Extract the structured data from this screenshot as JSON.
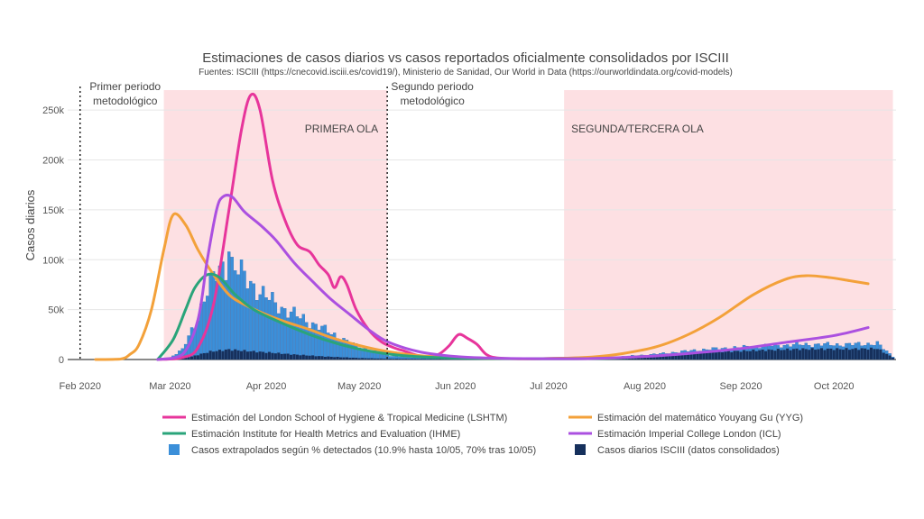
{
  "chart_data": {
    "type": "line",
    "title": "Estimaciones de casos diarios vs casos reportados oficialmente consolidados por ISCIII",
    "subtitle": "Fuentes: ISCIII (https://cnecovid.isciii.es/covid19/), Ministerio de Sanidad, Our World in Data (https://ourworldindata.org/covid-models)",
    "ylabel": "Casos diarios",
    "xlabel": "",
    "x_range": [
      "2020-01-28",
      "2020-10-21"
    ],
    "ylim": [
      0,
      270000
    ],
    "y_ticks": [
      0,
      50000,
      100000,
      150000,
      200000,
      250000
    ],
    "y_tick_labels": [
      "0",
      "50k",
      "100k",
      "150k",
      "200k",
      "250k"
    ],
    "x_ticks": [
      "2020-02-01",
      "2020-03-01",
      "2020-04-01",
      "2020-05-01",
      "2020-06-01",
      "2020-07-01",
      "2020-08-01",
      "2020-09-01",
      "2020-10-01"
    ],
    "x_tick_labels": [
      "Feb 2020",
      "Mar 2020",
      "Apr 2020",
      "May 2020",
      "Jun 2020",
      "Jul 2020",
      "Aug 2020",
      "Sep 2020",
      "Oct 2020"
    ],
    "shaded_regions": [
      {
        "label": "PRIMERA OLA",
        "start": "2020-02-28",
        "end": "2020-05-10",
        "color": "#fde0e3"
      },
      {
        "label": "SEGUNDA/TERCERA OLA",
        "start": "2020-07-06",
        "end": "2020-10-20",
        "color": "#fde0e3"
      }
    ],
    "vertical_lines": [
      {
        "label_line1": "Primer periodo",
        "label_line2": "metodológico",
        "date": "2020-02-01"
      },
      {
        "label_line1": "Segundo periodo",
        "label_line2": "metodológico",
        "date": "2020-05-10"
      }
    ],
    "line_series": [
      {
        "name": "Estimación del London School of Hygiene & Tropical Medicine (LSHTM)",
        "color": "#e7359b",
        "points": [
          [
            "2020-02-26",
            0
          ],
          [
            "2020-03-05",
            2000
          ],
          [
            "2020-03-10",
            12000
          ],
          [
            "2020-03-15",
            55000
          ],
          [
            "2020-03-20",
            150000
          ],
          [
            "2020-03-24",
            230000
          ],
          [
            "2020-03-27",
            265000
          ],
          [
            "2020-03-30",
            250000
          ],
          [
            "2020-04-03",
            180000
          ],
          [
            "2020-04-07",
            140000
          ],
          [
            "2020-04-11",
            115000
          ],
          [
            "2020-04-15",
            108000
          ],
          [
            "2020-04-18",
            95000
          ],
          [
            "2020-04-21",
            85000
          ],
          [
            "2020-04-23",
            72000
          ],
          [
            "2020-04-25",
            83000
          ],
          [
            "2020-04-27",
            75000
          ],
          [
            "2020-04-30",
            50000
          ],
          [
            "2020-05-04",
            30000
          ],
          [
            "2020-05-08",
            18000
          ],
          [
            "2020-05-12",
            12000
          ],
          [
            "2020-05-16",
            8000
          ],
          [
            "2020-05-20",
            4000
          ],
          [
            "2020-05-24",
            3000
          ],
          [
            "2020-05-27",
            6000
          ],
          [
            "2020-05-30",
            14000
          ],
          [
            "2020-06-02",
            25000
          ],
          [
            "2020-06-05",
            21000
          ],
          [
            "2020-06-08",
            15000
          ],
          [
            "2020-06-11",
            5000
          ],
          [
            "2020-06-15",
            1500
          ],
          [
            "2020-06-25",
            800
          ],
          [
            "2020-07-10",
            1500
          ],
          [
            "2020-07-20",
            2500
          ]
        ]
      },
      {
        "name": "Estimación del matemático Youyang Gu (YYG)",
        "color": "#f3a13a",
        "points": [
          [
            "2020-02-06",
            0
          ],
          [
            "2020-02-14",
            500
          ],
          [
            "2020-02-17",
            5000
          ],
          [
            "2020-02-20",
            15000
          ],
          [
            "2020-02-24",
            50000
          ],
          [
            "2020-02-28",
            110000
          ],
          [
            "2020-03-02",
            145000
          ],
          [
            "2020-03-06",
            135000
          ],
          [
            "2020-03-10",
            110000
          ],
          [
            "2020-03-15",
            85000
          ],
          [
            "2020-03-20",
            65000
          ],
          [
            "2020-03-25",
            55000
          ],
          [
            "2020-04-01",
            45000
          ],
          [
            "2020-04-07",
            38000
          ],
          [
            "2020-04-15",
            30000
          ],
          [
            "2020-04-22",
            22000
          ],
          [
            "2020-05-01",
            14000
          ],
          [
            "2020-05-10",
            8000
          ],
          [
            "2020-05-20",
            4000
          ],
          [
            "2020-06-01",
            2000
          ],
          [
            "2020-06-15",
            1000
          ],
          [
            "2020-07-01",
            1000
          ],
          [
            "2020-07-15",
            2500
          ],
          [
            "2020-07-25",
            6000
          ],
          [
            "2020-08-05",
            13000
          ],
          [
            "2020-08-15",
            25000
          ],
          [
            "2020-08-25",
            42000
          ],
          [
            "2020-09-05",
            65000
          ],
          [
            "2020-09-15",
            80000
          ],
          [
            "2020-09-22",
            84000
          ],
          [
            "2020-09-30",
            82000
          ],
          [
            "2020-10-06",
            79000
          ],
          [
            "2020-10-12",
            76000
          ]
        ]
      },
      {
        "name": "Estimación Institute for Health Metrics and Evaluation (IHME)",
        "color": "#2aa47a",
        "points": [
          [
            "2020-02-26",
            0
          ],
          [
            "2020-03-02",
            20000
          ],
          [
            "2020-03-06",
            50000
          ],
          [
            "2020-03-09",
            72000
          ],
          [
            "2020-03-13",
            85000
          ],
          [
            "2020-03-17",
            82000
          ],
          [
            "2020-03-22",
            65000
          ],
          [
            "2020-03-28",
            50000
          ],
          [
            "2020-04-05",
            38000
          ],
          [
            "2020-04-15",
            25000
          ],
          [
            "2020-04-25",
            15000
          ],
          [
            "2020-05-05",
            8000
          ],
          [
            "2020-05-15",
            4000
          ],
          [
            "2020-06-01",
            1500
          ],
          [
            "2020-07-01",
            800
          ],
          [
            "2020-07-20",
            1200
          ],
          [
            "2020-07-31",
            3000
          ]
        ]
      },
      {
        "name": "Estimación Imperial College London (ICL)",
        "color": "#ab50e0",
        "points": [
          [
            "2020-02-26",
            0
          ],
          [
            "2020-03-05",
            5000
          ],
          [
            "2020-03-10",
            40000
          ],
          [
            "2020-03-13",
            100000
          ],
          [
            "2020-03-16",
            150000
          ],
          [
            "2020-03-18",
            163000
          ],
          [
            "2020-03-21",
            163000
          ],
          [
            "2020-03-25",
            148000
          ],
          [
            "2020-03-30",
            135000
          ],
          [
            "2020-04-04",
            120000
          ],
          [
            "2020-04-10",
            97000
          ],
          [
            "2020-04-16",
            78000
          ],
          [
            "2020-04-22",
            60000
          ],
          [
            "2020-04-28",
            45000
          ],
          [
            "2020-05-04",
            30000
          ],
          [
            "2020-05-10",
            18000
          ],
          [
            "2020-05-20",
            8000
          ],
          [
            "2020-06-01",
            3000
          ],
          [
            "2020-06-15",
            1200
          ],
          [
            "2020-07-01",
            800
          ],
          [
            "2020-07-15",
            1000
          ],
          [
            "2020-08-01",
            3000
          ],
          [
            "2020-08-15",
            6000
          ],
          [
            "2020-09-01",
            11000
          ],
          [
            "2020-09-15",
            17000
          ],
          [
            "2020-10-01",
            24000
          ],
          [
            "2020-10-12",
            32000
          ]
        ]
      }
    ],
    "bar_series": [
      {
        "name": "Casos extrapolados según % detectados (10.9% hasta 10/05, 70% tras 10/05)",
        "color": "#3b8fd9",
        "profile": [
          [
            "2020-02-26",
            0
          ],
          [
            "2020-03-01",
            2000
          ],
          [
            "2020-03-05",
            10000
          ],
          [
            "2020-03-09",
            35000
          ],
          [
            "2020-03-13",
            70000
          ],
          [
            "2020-03-17",
            90000
          ],
          [
            "2020-03-20",
            96000
          ],
          [
            "2020-03-22",
            92000
          ],
          [
            "2020-03-26",
            80000
          ],
          [
            "2020-03-31",
            65000
          ],
          [
            "2020-04-06",
            52000
          ],
          [
            "2020-04-12",
            42000
          ],
          [
            "2020-04-18",
            33000
          ],
          [
            "2020-04-24",
            23000
          ],
          [
            "2020-04-30",
            14000
          ],
          [
            "2020-05-05",
            9000
          ],
          [
            "2020-05-10",
            4000
          ],
          [
            "2020-05-20",
            1500
          ],
          [
            "2020-06-15",
            300
          ],
          [
            "2020-07-10",
            800
          ],
          [
            "2020-07-25",
            3000
          ],
          [
            "2020-08-05",
            5500
          ],
          [
            "2020-08-20",
            10000
          ],
          [
            "2020-09-05",
            13000
          ],
          [
            "2020-09-20",
            15000
          ],
          [
            "2020-10-05",
            15000
          ],
          [
            "2020-10-15",
            16000
          ],
          [
            "2020-10-20",
            3000
          ]
        ],
        "peak_date": "2020-03-20",
        "peak_value": 108000
      },
      {
        "name": "Casos diarios ISCIII (datos consolidados)",
        "color": "#16305c",
        "profile": [
          [
            "2020-02-26",
            0
          ],
          [
            "2020-03-01",
            200
          ],
          [
            "2020-03-08",
            3000
          ],
          [
            "2020-03-14",
            8000
          ],
          [
            "2020-03-20",
            10000
          ],
          [
            "2020-03-26",
            8500
          ],
          [
            "2020-04-02",
            7000
          ],
          [
            "2020-04-10",
            5000
          ],
          [
            "2020-04-20",
            3000
          ],
          [
            "2020-05-01",
            1500
          ],
          [
            "2020-05-10",
            800
          ],
          [
            "2020-06-01",
            300
          ],
          [
            "2020-07-10",
            600
          ],
          [
            "2020-07-25",
            2500
          ],
          [
            "2020-08-05",
            4000
          ],
          [
            "2020-08-20",
            7000
          ],
          [
            "2020-09-05",
            9000
          ],
          [
            "2020-09-20",
            10500
          ],
          [
            "2020-10-05",
            10500
          ],
          [
            "2020-10-15",
            11000
          ],
          [
            "2020-10-20",
            2000
          ]
        ]
      }
    ],
    "legend_position": "bottom"
  }
}
